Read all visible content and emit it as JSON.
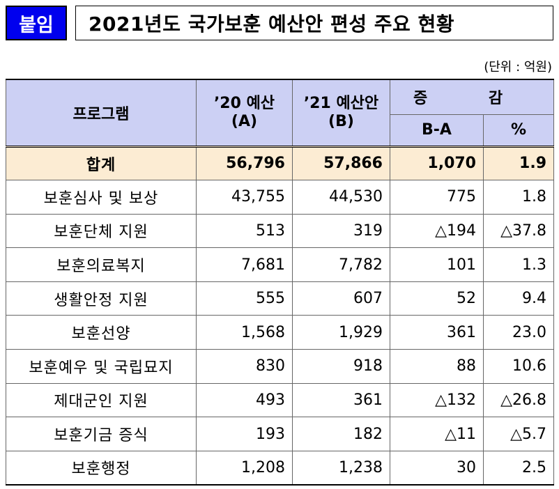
{
  "header": {
    "tag": "붙임",
    "title": "2021년도 국가보훈 예산안 편성 주요 현황",
    "unit": "(단위 : 억원)"
  },
  "table": {
    "columns": {
      "program": "프로그램",
      "budget_2020_line1": "’20 예산",
      "budget_2020_line2": "(A)",
      "budget_2021_line1": "’21 예산안",
      "budget_2021_line2": "(B)",
      "change": "증 감",
      "change_amount": "B-A",
      "change_percent": "%"
    },
    "total": {
      "name": "합계",
      "a": "56,796",
      "b": "57,866",
      "diff": "1,070",
      "pct": "1.9"
    },
    "rows": [
      {
        "name": "보훈심사 및 보상",
        "a": "43,755",
        "b": "44,530",
        "diff": "775",
        "pct": "1.8"
      },
      {
        "name": "보훈단체 지원",
        "a": "513",
        "b": "319",
        "diff": "△194",
        "pct": "△37.8"
      },
      {
        "name": "보훈의료복지",
        "a": "7,681",
        "b": "7,782",
        "diff": "101",
        "pct": "1.3"
      },
      {
        "name": "생활안정 지원",
        "a": "555",
        "b": "607",
        "diff": "52",
        "pct": "9.4"
      },
      {
        "name": "보훈선양",
        "a": "1,568",
        "b": "1,929",
        "diff": "361",
        "pct": "23.0"
      },
      {
        "name": "보훈예우 및 국립묘지",
        "a": "830",
        "b": "918",
        "diff": "88",
        "pct": "10.6"
      },
      {
        "name": "제대군인 지원",
        "a": "493",
        "b": "361",
        "diff": "△132",
        "pct": "△26.8"
      },
      {
        "name": "보훈기금 증식",
        "a": "193",
        "b": "182",
        "diff": "△11",
        "pct": "△5.7"
      },
      {
        "name": "보훈행정",
        "a": "1,208",
        "b": "1,238",
        "diff": "30",
        "pct": "2.5"
      }
    ]
  }
}
